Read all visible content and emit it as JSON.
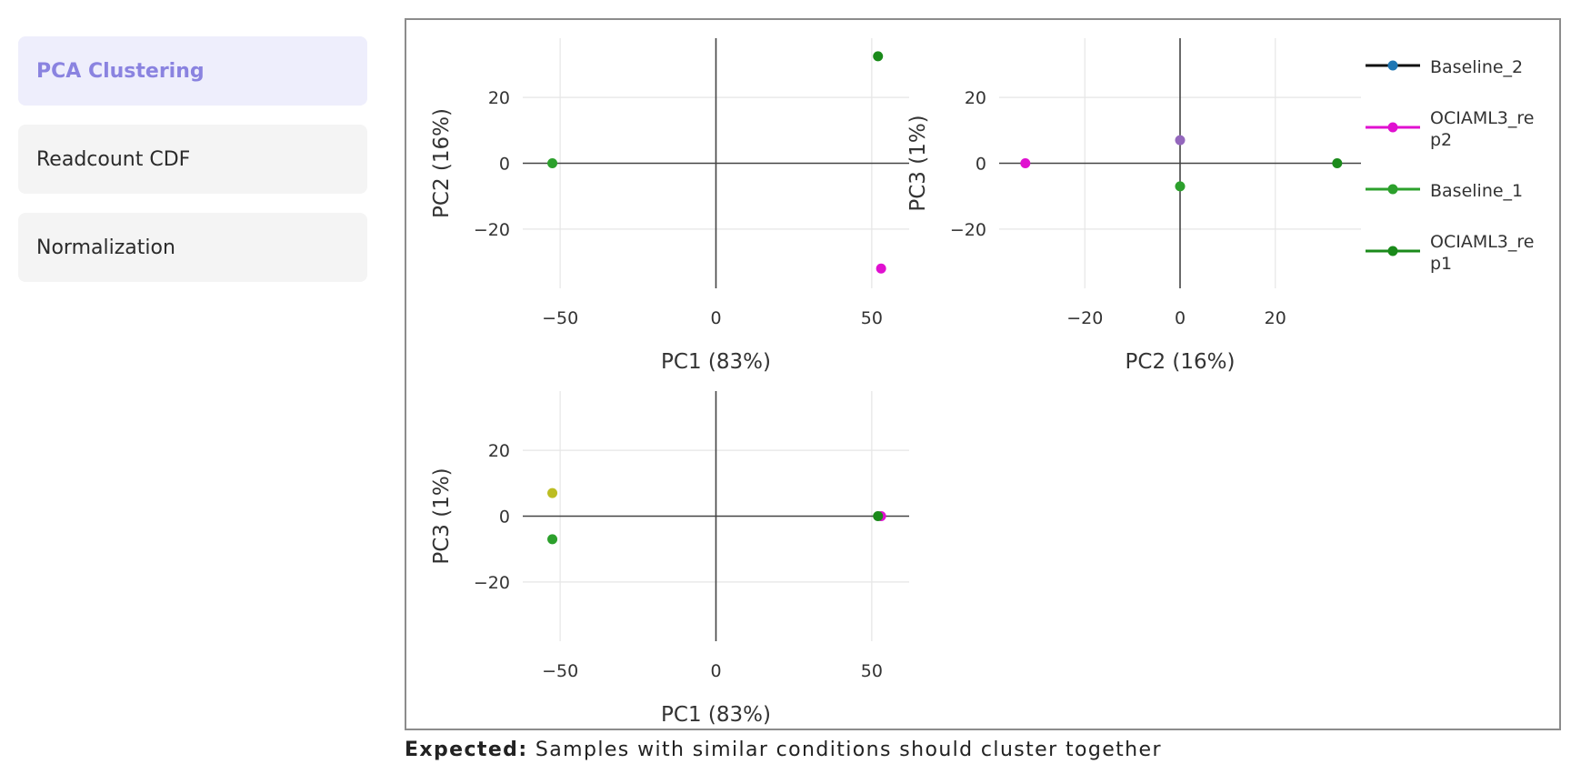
{
  "sidebar": {
    "items": [
      {
        "label": "PCA Clustering",
        "active": true
      },
      {
        "label": "Readcount CDF",
        "active": false
      },
      {
        "label": "Normalization",
        "active": false
      }
    ]
  },
  "caption": {
    "prefix": "Expected:",
    "text": "Samples with similar conditions should cluster together"
  },
  "colors": {
    "Baseline_2": "#1f77b4",
    "OCIAML3_rep2": "#e010d0",
    "Baseline_1": "#2ca02c",
    "OCIAML3_rep1": "#1a8a1a",
    "extra_purple": "#9467bd",
    "extra_olive": "#bcbd22"
  },
  "chart_data": [
    {
      "type": "scatter",
      "xlabel": "PC1 (83%)",
      "ylabel": "PC2 (16%)",
      "xticks": [
        -50,
        0,
        50
      ],
      "yticks": [
        20,
        0,
        -20
      ],
      "xlim": [
        -62,
        62
      ],
      "ylim": [
        -38,
        38
      ],
      "grid": true,
      "series": [
        {
          "name": "Baseline_1",
          "points": [
            {
              "x": -52.5,
              "y": 0
            }
          ],
          "color": "#2ca02c"
        },
        {
          "name": "OCIAML3_rep1",
          "points": [
            {
              "x": 52,
              "y": 32.5
            }
          ],
          "color": "#1a8a1a"
        },
        {
          "name": "OCIAML3_rep2",
          "points": [
            {
              "x": 53,
              "y": -32
            }
          ],
          "color": "#e010d0"
        }
      ]
    },
    {
      "type": "scatter",
      "xlabel": "PC2 (16%)",
      "ylabel": "PC3 (1%)",
      "xticks": [
        -20,
        0,
        20
      ],
      "yticks": [
        20,
        0,
        -20
      ],
      "xlim": [
        -38,
        38
      ],
      "ylim": [
        -38,
        38
      ],
      "grid": true,
      "series": [
        {
          "name": "OCIAML3_rep2",
          "points": [
            {
              "x": -32.5,
              "y": 0
            }
          ],
          "color": "#e010d0"
        },
        {
          "name": "",
          "points": [
            {
              "x": 0,
              "y": 7
            }
          ],
          "color": "#9467bd"
        },
        {
          "name": "Baseline_1",
          "points": [
            {
              "x": 0,
              "y": -7
            }
          ],
          "color": "#2ca02c"
        },
        {
          "name": "OCIAML3_rep1",
          "points": [
            {
              "x": 33,
              "y": 0
            }
          ],
          "color": "#1a8a1a"
        }
      ]
    },
    {
      "type": "scatter",
      "xlabel": "PC1 (83%)",
      "ylabel": "PC3 (1%)",
      "xticks": [
        -50,
        0,
        50
      ],
      "yticks": [
        20,
        0,
        -20
      ],
      "xlim": [
        -62,
        62
      ],
      "ylim": [
        -38,
        38
      ],
      "grid": true,
      "series": [
        {
          "name": "",
          "points": [
            {
              "x": -52.5,
              "y": 7
            }
          ],
          "color": "#bcbd22"
        },
        {
          "name": "Baseline_1",
          "points": [
            {
              "x": -52.5,
              "y": -7
            }
          ],
          "color": "#2ca02c"
        },
        {
          "name": "OCIAML3_rep2",
          "points": [
            {
              "x": 53,
              "y": 0
            }
          ],
          "color": "#e010d0"
        },
        {
          "name": "OCIAML3_rep1",
          "points": [
            {
              "x": 52,
              "y": 0
            }
          ],
          "color": "#1a8a1a"
        }
      ]
    }
  ],
  "legend": {
    "placement": "top-right",
    "entries": [
      {
        "lines": [
          "Baseline_2"
        ],
        "color": "#1f77b4"
      },
      {
        "lines": [
          "OCIAML3_re",
          "p2"
        ],
        "color": "#e010d0"
      },
      {
        "lines": [
          "Baseline_1"
        ],
        "color": "#2ca02c"
      },
      {
        "lines": [
          "OCIAML3_re",
          "p1"
        ],
        "color": "#1a8a1a"
      }
    ]
  }
}
